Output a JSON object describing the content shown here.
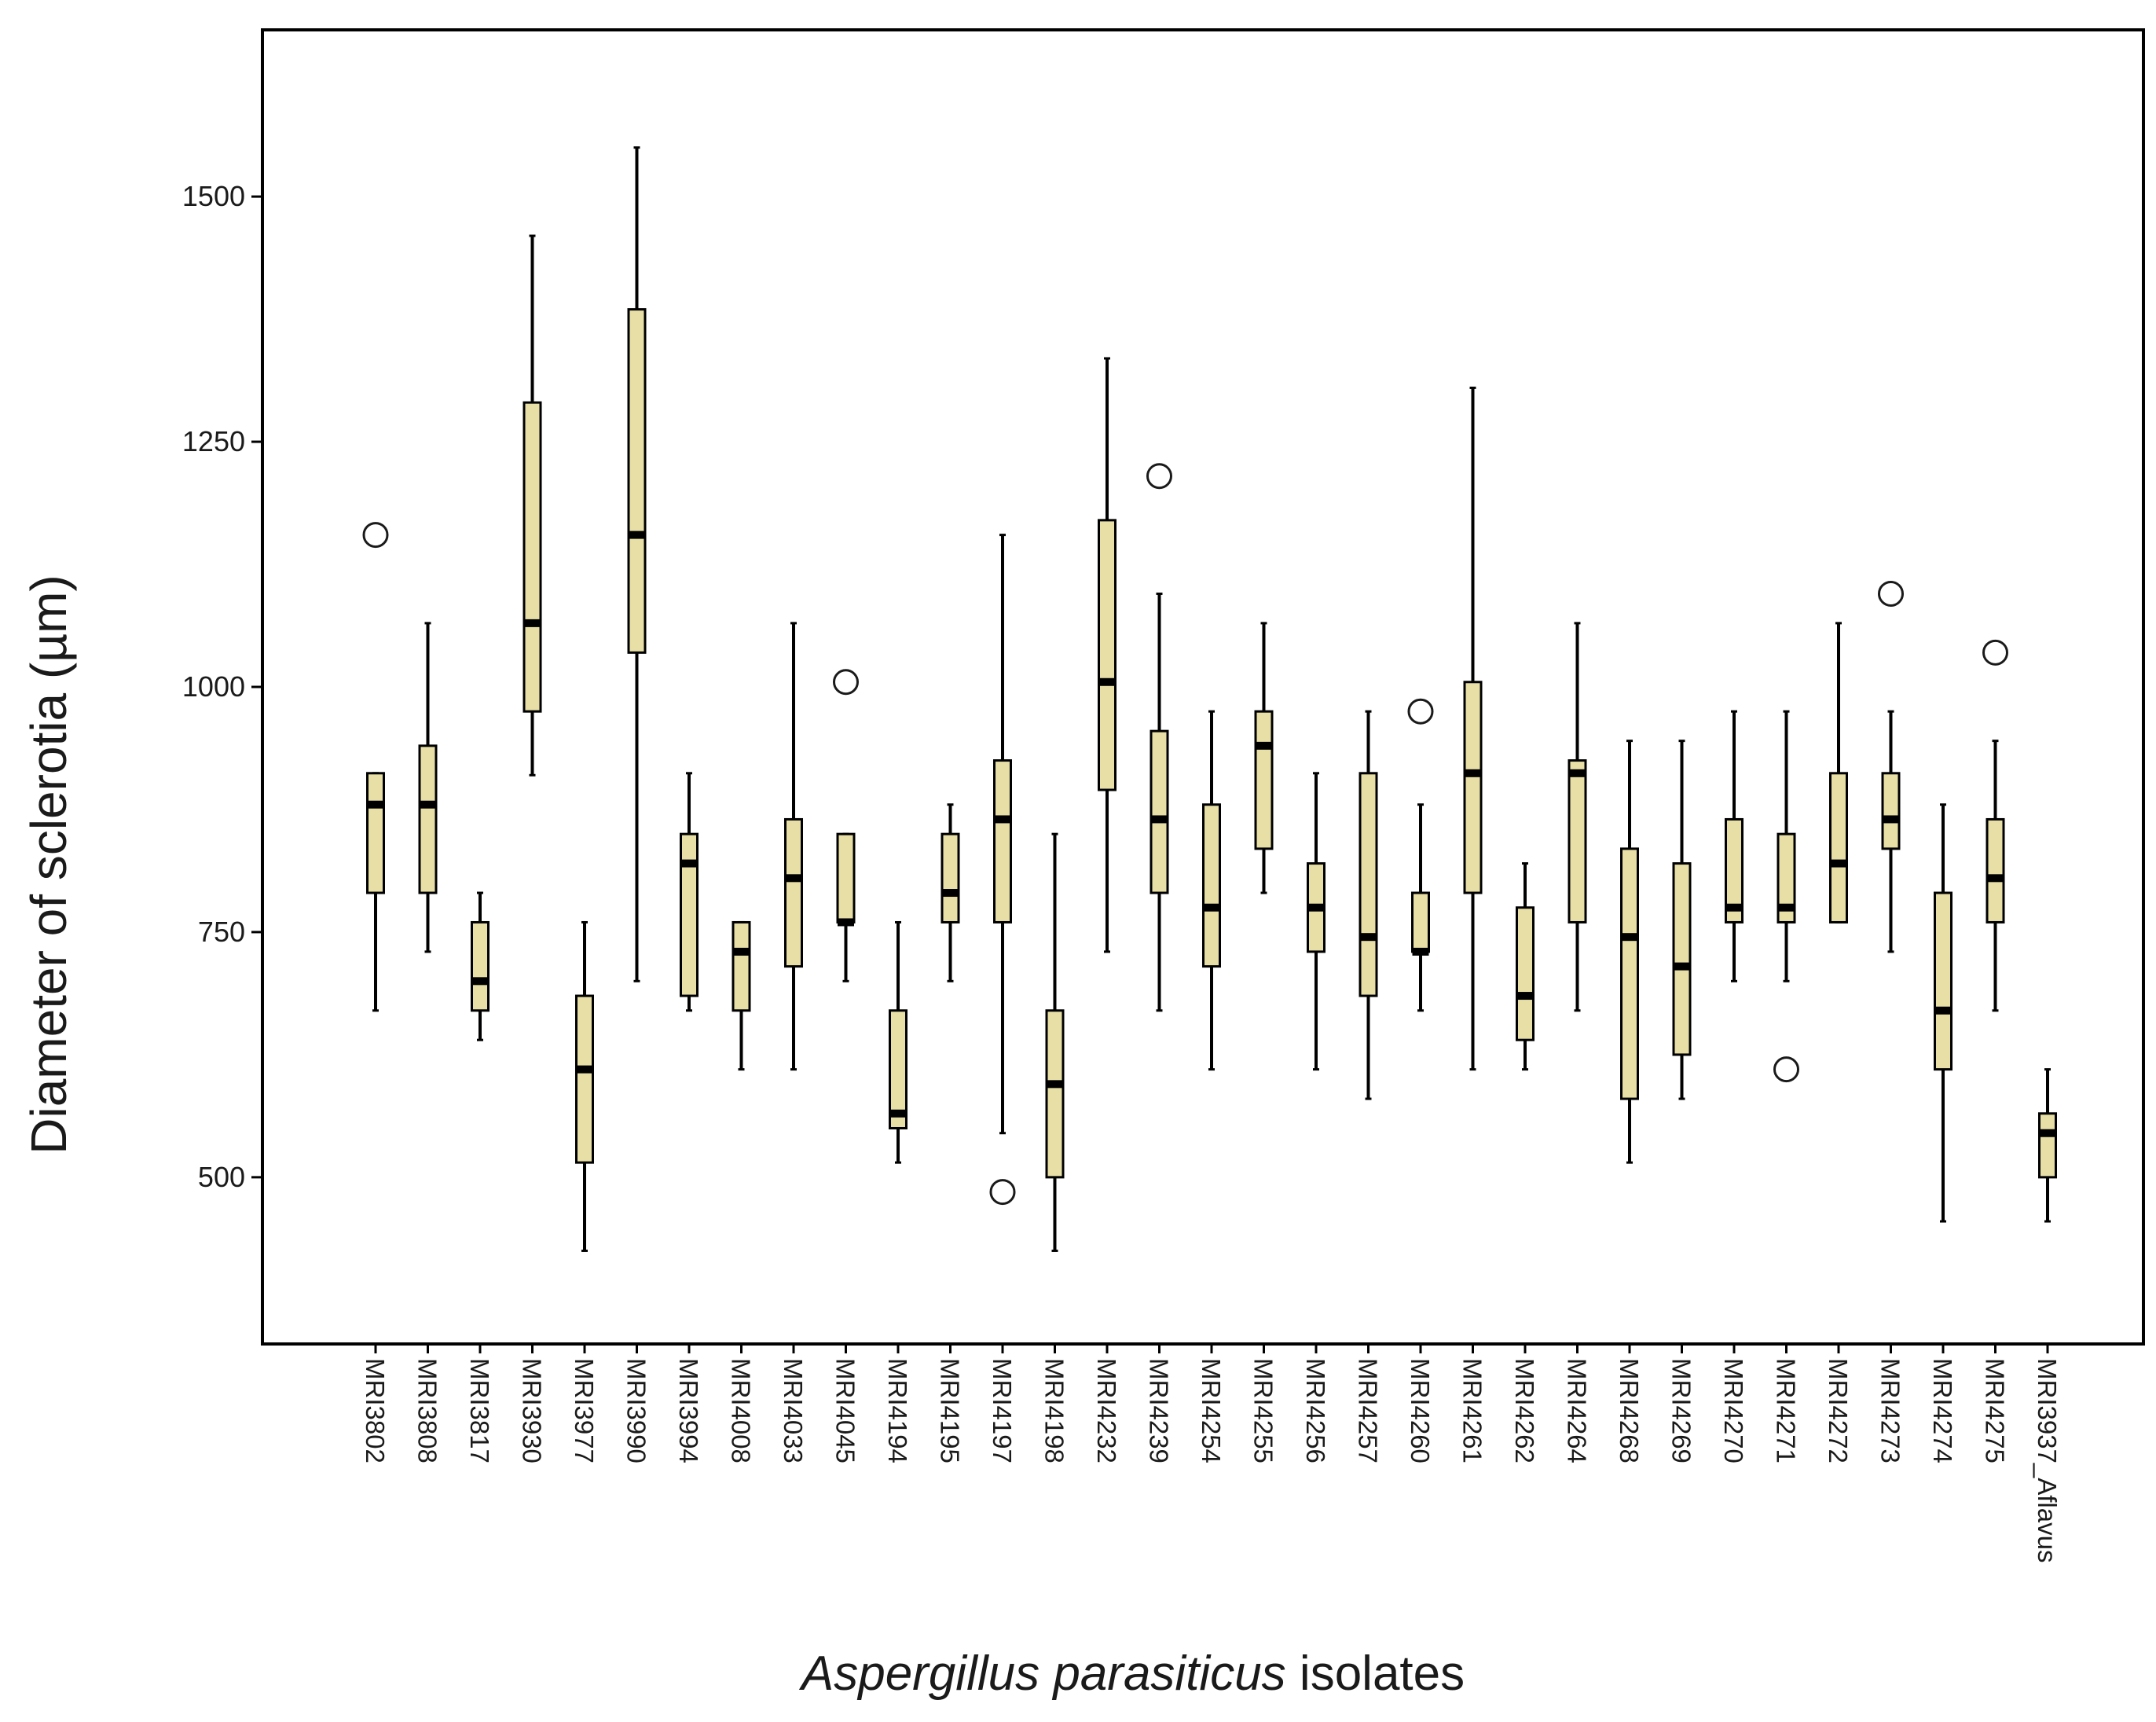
{
  "chart_data": {
    "type": "boxplot",
    "title": "",
    "ylabel": "Diameter of sclerotia (µm)",
    "xlabel_italic": "Aspergillus parasiticus",
    "xlabel_rest": "isolates",
    "ylim": [
      330,
      1670
    ],
    "yticks": [
      500,
      750,
      1000,
      1250,
      1500
    ],
    "colors": {
      "box_fill": "#e8dfa6",
      "stroke": "#000000",
      "background": "#ffffff"
    },
    "categories": [
      "MRI3802",
      "MRI3808",
      "MRI3817",
      "MRI3930",
      "MRI3977",
      "MRI3990",
      "MRI3994",
      "MRI4008",
      "MRI4033",
      "MRI4045",
      "MRI4194",
      "MRI4195",
      "MRI4197",
      "MRI4198",
      "MRI4232",
      "MRI4239",
      "MRI4254",
      "MRI4255",
      "MRI4256",
      "MRI4257",
      "MRI4260",
      "MRI4261",
      "MRI4262",
      "MRI4264",
      "MRI4268",
      "MRI4269",
      "MRI4270",
      "MRI4271",
      "MRI4272",
      "MRI4273",
      "MRI4274",
      "MRI4275",
      "MRI3937_Aflavus"
    ],
    "boxes": [
      {
        "min": 670,
        "q1": 790,
        "median": 880,
        "q3": 912,
        "max": 912,
        "outliers": [
          1155
        ]
      },
      {
        "min": 730,
        "q1": 790,
        "median": 880,
        "q3": 940,
        "max": 1065,
        "outliers": []
      },
      {
        "min": 640,
        "q1": 670,
        "median": 700,
        "q3": 760,
        "max": 790,
        "outliers": []
      },
      {
        "min": 910,
        "q1": 975,
        "median": 1065,
        "q3": 1290,
        "max": 1460,
        "outliers": []
      },
      {
        "min": 425,
        "q1": 515,
        "median": 610,
        "q3": 685,
        "max": 760,
        "outliers": []
      },
      {
        "min": 700,
        "q1": 1035,
        "median": 1155,
        "q3": 1385,
        "max": 1550,
        "outliers": []
      },
      {
        "min": 670,
        "q1": 685,
        "median": 820,
        "q3": 850,
        "max": 912,
        "outliers": []
      },
      {
        "min": 610,
        "q1": 670,
        "median": 730,
        "q3": 760,
        "max": 760,
        "outliers": []
      },
      {
        "min": 610,
        "q1": 715,
        "median": 805,
        "q3": 865,
        "max": 1065,
        "outliers": []
      },
      {
        "min": 700,
        "q1": 760,
        "median": 760,
        "q3": 850,
        "max": 850,
        "outliers": [
          1005
        ]
      },
      {
        "min": 515,
        "q1": 550,
        "median": 565,
        "q3": 670,
        "max": 760,
        "outliers": []
      },
      {
        "min": 700,
        "q1": 760,
        "median": 790,
        "q3": 850,
        "max": 880,
        "outliers": []
      },
      {
        "min": 545,
        "q1": 760,
        "median": 865,
        "q3": 925,
        "max": 1155,
        "outliers": [
          485
        ]
      },
      {
        "min": 425,
        "q1": 500,
        "median": 595,
        "q3": 670,
        "max": 850,
        "outliers": []
      },
      {
        "min": 730,
        "q1": 895,
        "median": 1005,
        "q3": 1170,
        "max": 1335,
        "outliers": []
      },
      {
        "min": 670,
        "q1": 790,
        "median": 865,
        "q3": 955,
        "max": 1095,
        "outliers": [
          1215
        ]
      },
      {
        "min": 610,
        "q1": 715,
        "median": 775,
        "q3": 880,
        "max": 975,
        "outliers": []
      },
      {
        "min": 790,
        "q1": 835,
        "median": 940,
        "q3": 975,
        "max": 1065,
        "outliers": []
      },
      {
        "min": 610,
        "q1": 730,
        "median": 775,
        "q3": 820,
        "max": 912,
        "outliers": []
      },
      {
        "min": 580,
        "q1": 685,
        "median": 745,
        "q3": 912,
        "max": 975,
        "outliers": []
      },
      {
        "min": 670,
        "q1": 730,
        "median": 730,
        "q3": 790,
        "max": 880,
        "outliers": [
          975
        ]
      },
      {
        "min": 610,
        "q1": 790,
        "median": 912,
        "q3": 1005,
        "max": 1305,
        "outliers": []
      },
      {
        "min": 610,
        "q1": 640,
        "median": 685,
        "q3": 775,
        "max": 820,
        "outliers": []
      },
      {
        "min": 670,
        "q1": 760,
        "median": 912,
        "q3": 925,
        "max": 1065,
        "outliers": []
      },
      {
        "min": 515,
        "q1": 580,
        "median": 745,
        "q3": 835,
        "max": 945,
        "outliers": []
      },
      {
        "min": 580,
        "q1": 625,
        "median": 715,
        "q3": 820,
        "max": 945,
        "outliers": []
      },
      {
        "min": 700,
        "q1": 760,
        "median": 775,
        "q3": 865,
        "max": 975,
        "outliers": []
      },
      {
        "min": 700,
        "q1": 760,
        "median": 775,
        "q3": 850,
        "max": 975,
        "outliers": [
          610
        ]
      },
      {
        "min": 760,
        "q1": 760,
        "median": 820,
        "q3": 912,
        "max": 1065,
        "outliers": []
      },
      {
        "min": 730,
        "q1": 835,
        "median": 865,
        "q3": 912,
        "max": 975,
        "outliers": [
          1095
        ]
      },
      {
        "min": 455,
        "q1": 610,
        "median": 670,
        "q3": 790,
        "max": 880,
        "outliers": []
      },
      {
        "min": 670,
        "q1": 760,
        "median": 805,
        "q3": 865,
        "max": 945,
        "outliers": [
          1035
        ]
      },
      {
        "min": 455,
        "q1": 500,
        "median": 545,
        "q3": 565,
        "max": 610,
        "outliers": []
      }
    ]
  }
}
